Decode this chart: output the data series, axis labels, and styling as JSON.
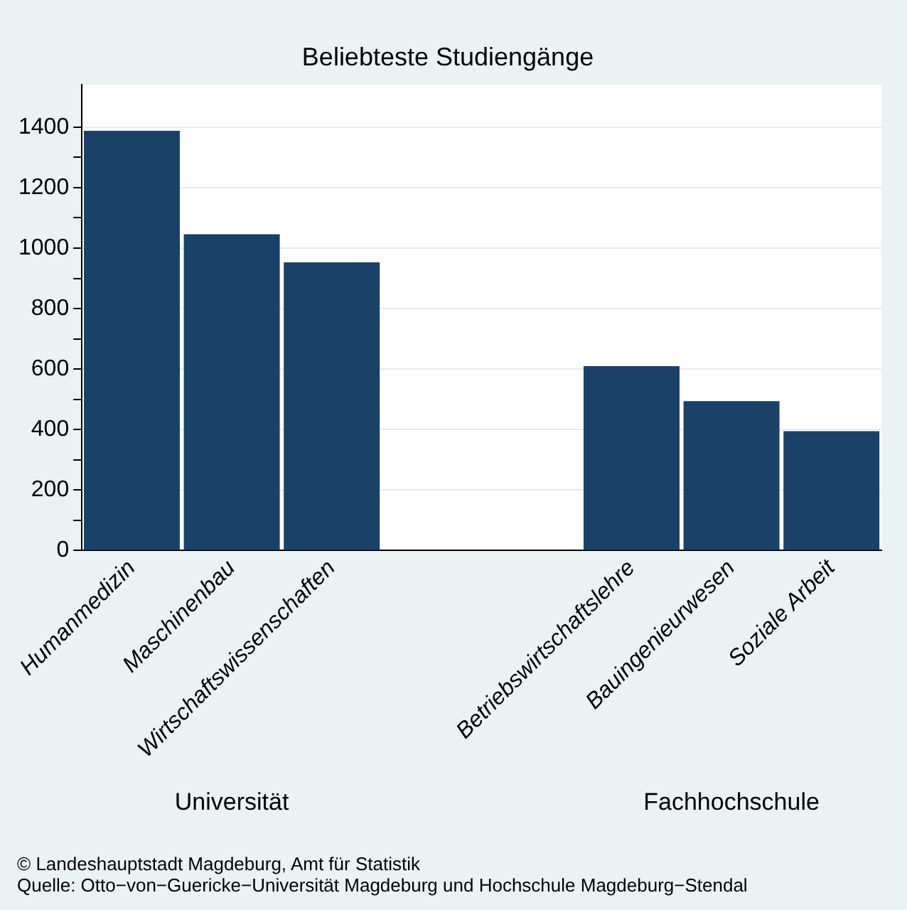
{
  "chart_data": {
    "type": "bar",
    "title": "Beliebteste Studiengänge",
    "categories": [
      "Humanmedizin",
      "Maschinenbau",
      "Wirtschaftswissenschaften",
      null,
      null,
      "Betriebswirtschaftslehre",
      "Bauingenieurwesen",
      "Soziale Arbeit"
    ],
    "values": [
      1388,
      1046,
      953,
      null,
      null,
      610,
      494,
      395
    ],
    "color": "#1a4269",
    "ylim": [
      0,
      1540
    ],
    "yticks": [
      0,
      {
        "value": 100,
        "label": null
      },
      200,
      {
        "value": 300,
        "label": null
      },
      400,
      {
        "value": 500,
        "label": null
      },
      600,
      {
        "value": 700,
        "label": null
      },
      800,
      {
        "value": 900,
        "label": null
      },
      1000,
      {
        "value": 1100,
        "label": null
      },
      1200,
      {
        "value": 1300,
        "label": null
      },
      1400
    ],
    "grid": "y",
    "annotations": [
      "Universität",
      "Fachhochschule",
      "©  Landeshauptstadt Magdeburg, Amt für Statistik",
      "Quelle: Otto−von−Guericke−Universität Magdeburg und Hochschule Magdeburg−Stendal"
    ]
  }
}
